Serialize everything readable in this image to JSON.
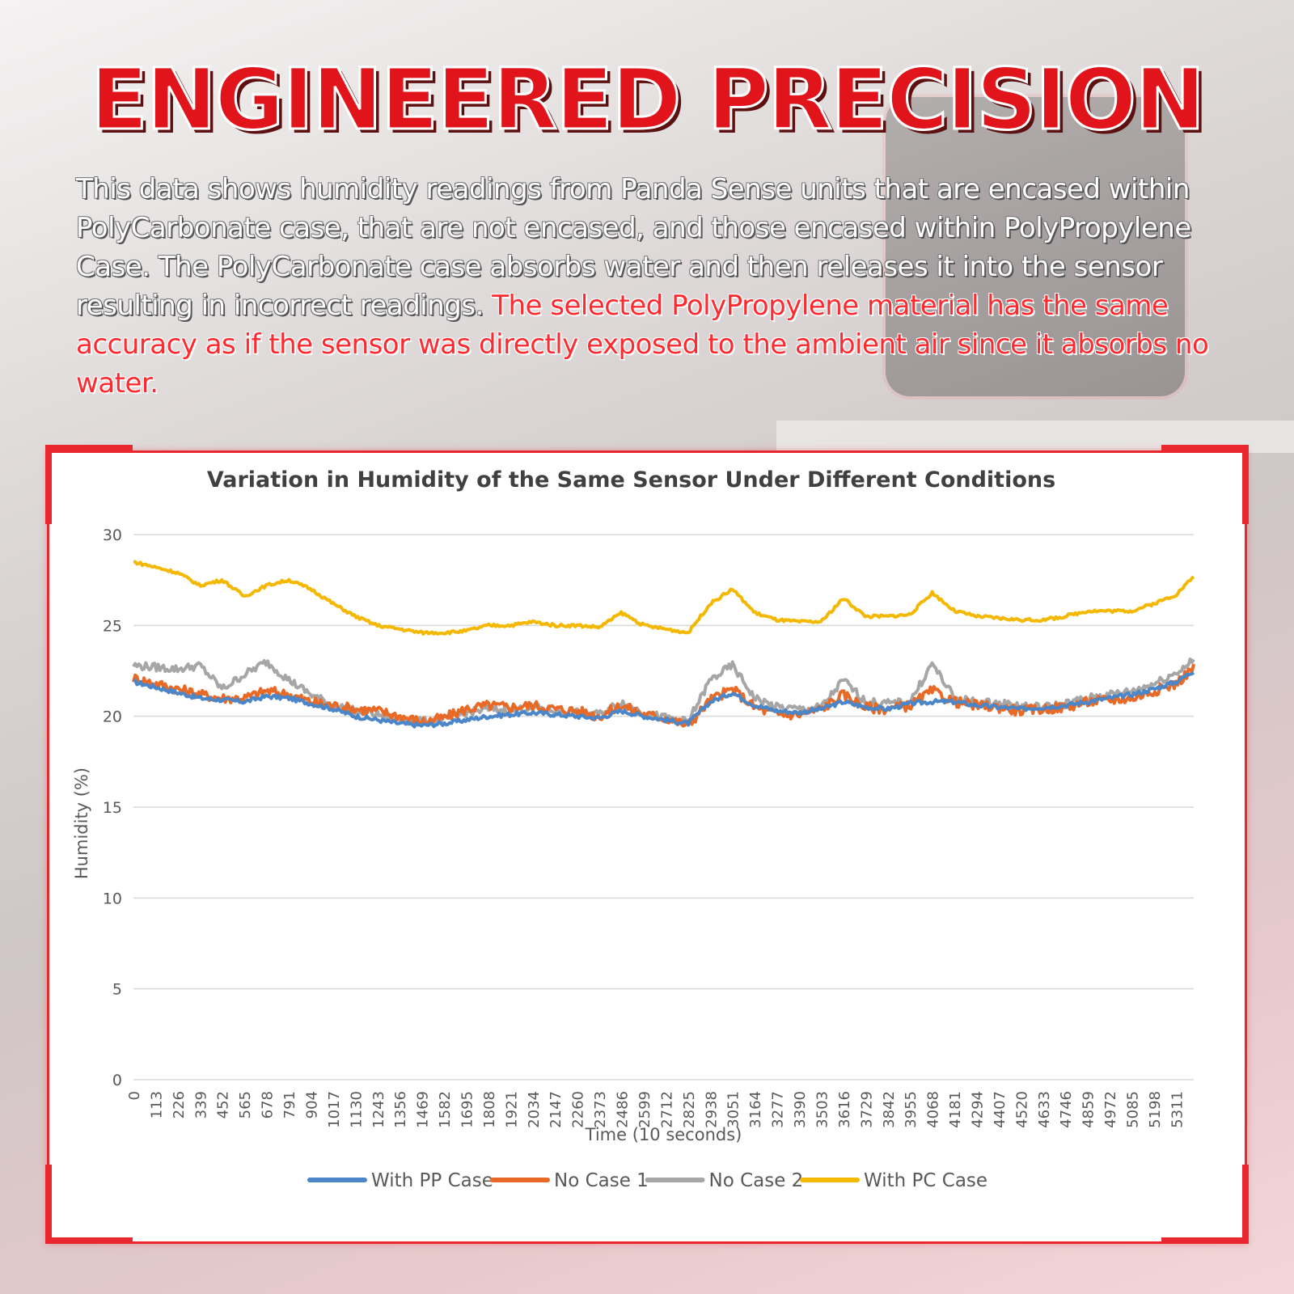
{
  "headline": "ENGINEERED PRECISION",
  "description": {
    "normal": "This data shows humidity readings from Panda Sense units that are encased within PolyCarbonate case, that are not encased, and those encased within PolyPropylene Case. The PolyCarbonate case absorbs water and then releases it into the sensor resulting in incorrect readings. ",
    "highlight": "The selected PolyPropylene material has the same accuracy as if the sensor was directly exposed to the ambient air since it absorbs no water."
  },
  "colors": {
    "accent_red": "#e0141a",
    "frame_red": "#e8282e"
  },
  "chart_data": {
    "type": "line",
    "title": "Variation in Humidity of the Same Sensor Under Different Conditions",
    "xlabel": "Time (10 seconds)",
    "ylabel": "Humidity (%)",
    "ylim": [
      0,
      30
    ],
    "yticks": [
      0,
      5,
      10,
      15,
      20,
      25,
      30
    ],
    "xlim": [
      0,
      5400
    ],
    "xticks": [
      0,
      113,
      226,
      339,
      452,
      565,
      678,
      791,
      904,
      1017,
      1130,
      1243,
      1356,
      1469,
      1582,
      1695,
      1808,
      1921,
      2034,
      2147,
      2260,
      2373,
      2486,
      2599,
      2712,
      2825,
      2938,
      3051,
      3164,
      3277,
      3390,
      3503,
      3616,
      3729,
      3842,
      3955,
      4068,
      4181,
      4294,
      4407,
      4520,
      4633,
      4746,
      4859,
      4972,
      5085,
      5198,
      5311
    ],
    "grid": true,
    "legend": "bottom",
    "series": [
      {
        "name": "With PP Case",
        "color": "#4a86c8",
        "x": [
          0,
          113,
          226,
          339,
          452,
          565,
          678,
          791,
          904,
          1017,
          1130,
          1243,
          1356,
          1469,
          1582,
          1695,
          1808,
          1921,
          2034,
          2147,
          2260,
          2373,
          2486,
          2599,
          2712,
          2825,
          2938,
          3051,
          3164,
          3277,
          3390,
          3503,
          3616,
          3729,
          3842,
          3955,
          4068,
          4181,
          4294,
          4407,
          4520,
          4633,
          4746,
          4859,
          4972,
          5085,
          5198,
          5311,
          5400
        ],
        "values": [
          21.9,
          21.6,
          21.3,
          21.0,
          20.9,
          20.8,
          21.1,
          21.0,
          20.7,
          20.4,
          20.0,
          19.8,
          19.6,
          19.5,
          19.6,
          19.8,
          20.0,
          20.1,
          20.2,
          20.1,
          20.0,
          19.9,
          20.3,
          20.0,
          19.8,
          19.6,
          20.8,
          21.3,
          20.6,
          20.3,
          20.2,
          20.4,
          20.8,
          20.5,
          20.4,
          20.7,
          20.8,
          20.8,
          20.6,
          20.5,
          20.4,
          20.5,
          20.6,
          20.8,
          21.0,
          21.2,
          21.5,
          21.9,
          22.5
        ]
      },
      {
        "name": "No Case 1",
        "color": "#e86a26",
        "x": [
          0,
          113,
          226,
          339,
          452,
          565,
          678,
          791,
          904,
          1017,
          1130,
          1243,
          1356,
          1469,
          1582,
          1695,
          1808,
          1921,
          2034,
          2147,
          2260,
          2373,
          2486,
          2599,
          2712,
          2825,
          2938,
          3051,
          3164,
          3277,
          3390,
          3503,
          3616,
          3729,
          3842,
          3955,
          4068,
          4181,
          4294,
          4407,
          4520,
          4633,
          4746,
          4859,
          4972,
          5085,
          5198,
          5311,
          5400
        ],
        "values": [
          22.1,
          21.8,
          21.5,
          21.2,
          21.0,
          21.0,
          21.4,
          21.2,
          20.8,
          20.6,
          20.4,
          20.3,
          20.0,
          19.7,
          19.9,
          20.4,
          20.6,
          20.5,
          20.6,
          20.4,
          20.3,
          20.0,
          20.6,
          20.1,
          19.9,
          19.5,
          20.9,
          21.5,
          20.5,
          20.1,
          20.1,
          20.4,
          21.2,
          20.5,
          20.4,
          20.6,
          21.4,
          20.8,
          20.6,
          20.5,
          20.3,
          20.4,
          20.5,
          20.8,
          20.9,
          21.0,
          21.4,
          21.8,
          22.7
        ]
      },
      {
        "name": "No Case 2",
        "color": "#a6a6a6",
        "x": [
          0,
          113,
          226,
          339,
          452,
          565,
          678,
          791,
          904,
          1017,
          1130,
          1243,
          1356,
          1469,
          1582,
          1695,
          1808,
          1921,
          2034,
          2147,
          2260,
          2373,
          2486,
          2599,
          2712,
          2825,
          2938,
          3051,
          3164,
          3277,
          3390,
          3503,
          3616,
          3729,
          3842,
          3955,
          4068,
          4181,
          4294,
          4407,
          4520,
          4633,
          4746,
          4859,
          4972,
          5085,
          5198,
          5311,
          5400
        ],
        "values": [
          22.8,
          22.7,
          22.6,
          22.8,
          21.5,
          22.3,
          23.0,
          22.0,
          21.2,
          20.6,
          20.3,
          20.1,
          19.8,
          19.7,
          19.8,
          20.2,
          20.4,
          20.3,
          20.5,
          20.3,
          20.2,
          20.1,
          20.8,
          20.2,
          19.9,
          19.7,
          22.0,
          22.8,
          21.0,
          20.5,
          20.4,
          20.5,
          22.0,
          20.8,
          20.7,
          20.8,
          22.9,
          21.0,
          20.8,
          20.7,
          20.6,
          20.5,
          20.7,
          21.0,
          21.2,
          21.4,
          21.8,
          22.4,
          23.1
        ]
      },
      {
        "name": "With PC Case",
        "color": "#f5b800",
        "x": [
          0,
          113,
          226,
          339,
          452,
          565,
          678,
          791,
          904,
          1017,
          1130,
          1243,
          1356,
          1469,
          1582,
          1695,
          1808,
          1921,
          2034,
          2147,
          2260,
          2373,
          2486,
          2599,
          2712,
          2825,
          2938,
          3051,
          3164,
          3277,
          3390,
          3503,
          3616,
          3729,
          3842,
          3955,
          4068,
          4181,
          4294,
          4407,
          4520,
          4633,
          4746,
          4859,
          4972,
          5085,
          5198,
          5311,
          5400
        ],
        "values": [
          28.5,
          28.2,
          27.9,
          27.2,
          27.5,
          26.6,
          27.2,
          27.5,
          27.0,
          26.2,
          25.5,
          25.0,
          24.8,
          24.6,
          24.6,
          24.7,
          25.0,
          25.0,
          25.2,
          25.0,
          25.0,
          24.9,
          25.7,
          25.0,
          24.8,
          24.6,
          26.2,
          27.0,
          25.7,
          25.3,
          25.2,
          25.2,
          26.5,
          25.5,
          25.5,
          25.6,
          26.8,
          25.8,
          25.5,
          25.4,
          25.3,
          25.3,
          25.5,
          25.8,
          25.8,
          25.8,
          26.2,
          26.7,
          27.7
        ]
      }
    ]
  }
}
